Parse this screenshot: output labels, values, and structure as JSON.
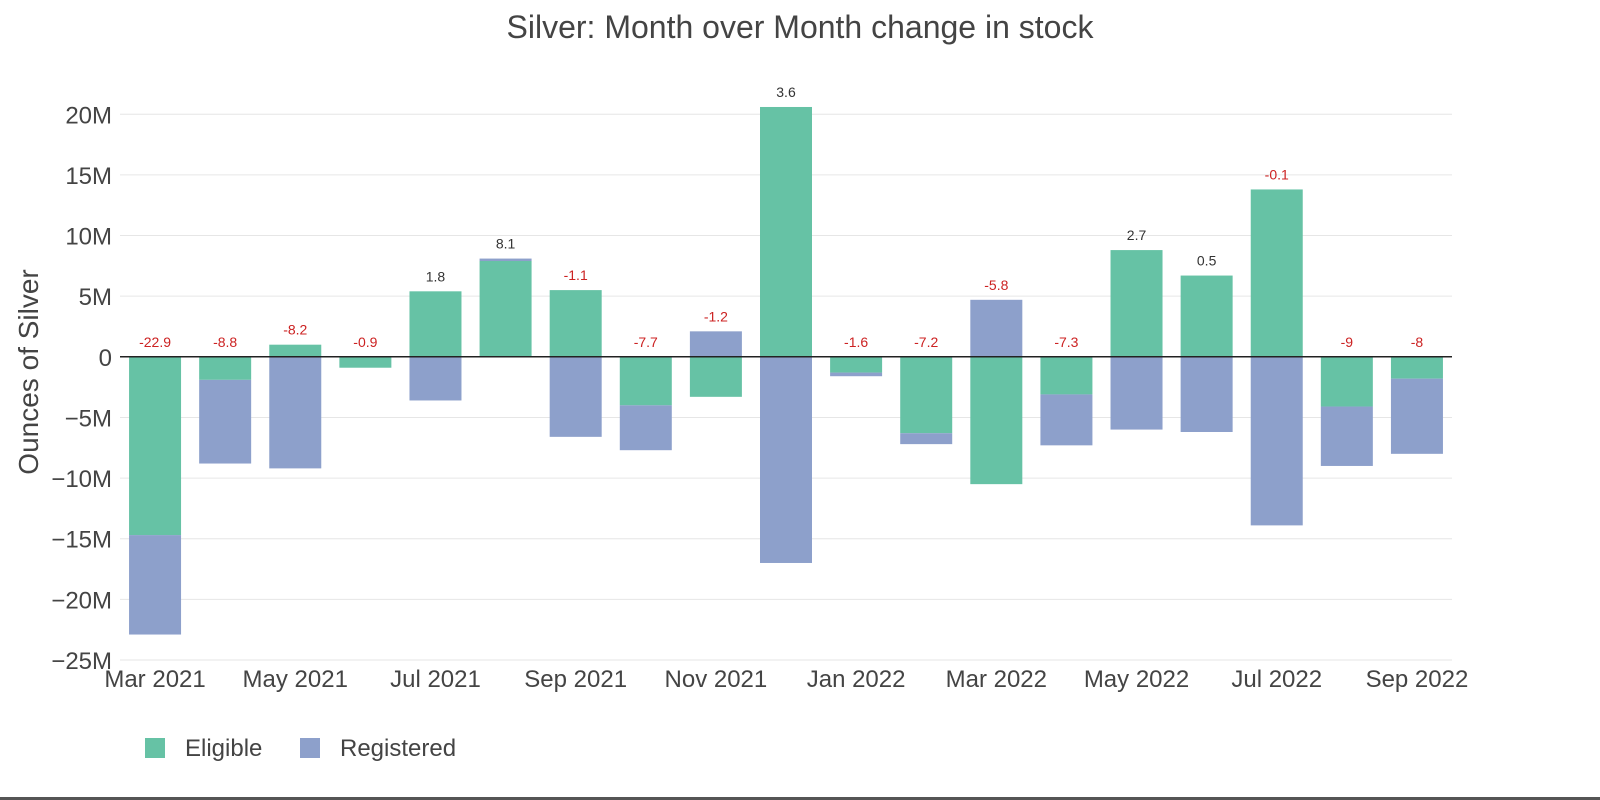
{
  "chart_data": {
    "type": "bar",
    "stacked": "relative",
    "title": "Silver: Month over Month change in stock",
    "xlabel": "",
    "ylabel": "Ounces of Silver",
    "ylim": [
      -25000000,
      22000000
    ],
    "y_ticks": [
      {
        "value": 20000000,
        "label": "20M"
      },
      {
        "value": 15000000,
        "label": "15M"
      },
      {
        "value": 10000000,
        "label": "10M"
      },
      {
        "value": 5000000,
        "label": "5M"
      },
      {
        "value": 0,
        "label": "0"
      },
      {
        "value": -5000000,
        "label": "−5M"
      },
      {
        "value": -10000000,
        "label": "−10M"
      },
      {
        "value": -15000000,
        "label": "−15M"
      },
      {
        "value": -20000000,
        "label": "−20M"
      },
      {
        "value": -25000000,
        "label": "−25M"
      }
    ],
    "x_tick_labels": [
      "Mar 2021",
      "May 2021",
      "Jul 2021",
      "Sep 2021",
      "Nov 2021",
      "Jan 2022",
      "Mar 2022",
      "May 2022",
      "Jul 2022",
      "Sep 2022"
    ],
    "x_tick_every": 2,
    "grid": true,
    "legend_position": "bottom-left",
    "categories": [
      "Mar 2021",
      "Apr 2021",
      "May 2021",
      "Jun 2021",
      "Jul 2021",
      "Aug 2021",
      "Sep 2021",
      "Oct 2021",
      "Nov 2021",
      "Dec 2021",
      "Jan 2022",
      "Feb 2022",
      "Mar 2022",
      "Apr 2022",
      "May 2022",
      "Jun 2022",
      "Jul 2022",
      "Aug 2022",
      "Sep 2022"
    ],
    "series": [
      {
        "name": "Eligible",
        "color": "#66c2a5",
        "values": [
          -14700000,
          -1900000,
          1000000,
          -900000,
          5400000,
          7900000,
          5500000,
          -4000000,
          -3300000,
          20600000,
          -1300000,
          -6300000,
          -10500000,
          -3100000,
          8800000,
          6700000,
          13800000,
          -4100000,
          -1800000
        ]
      },
      {
        "name": "Registered",
        "color": "#8da0cb",
        "values": [
          -8200000,
          -6900000,
          -9200000,
          0,
          -3600000,
          200000,
          -6600000,
          -3700000,
          2100000,
          -17000000,
          -300000,
          -900000,
          4700000,
          -4200000,
          -6000000,
          -6200000,
          -13900000,
          -4900000,
          -6200000
        ]
      }
    ],
    "totals": [
      "-22.9",
      "-8.8",
      "-8.2",
      "-0.9",
      "1.8",
      "8.1",
      "-1.1",
      "-7.7",
      "-1.2",
      "3.6",
      "-1.6",
      "-7.2",
      "-5.8",
      "-7.3",
      "2.7",
      "0.5",
      "-0.1",
      "-9",
      "-8"
    ],
    "total_label_colors": {
      "negative": "#cc2222",
      "positive": "#333333"
    }
  }
}
